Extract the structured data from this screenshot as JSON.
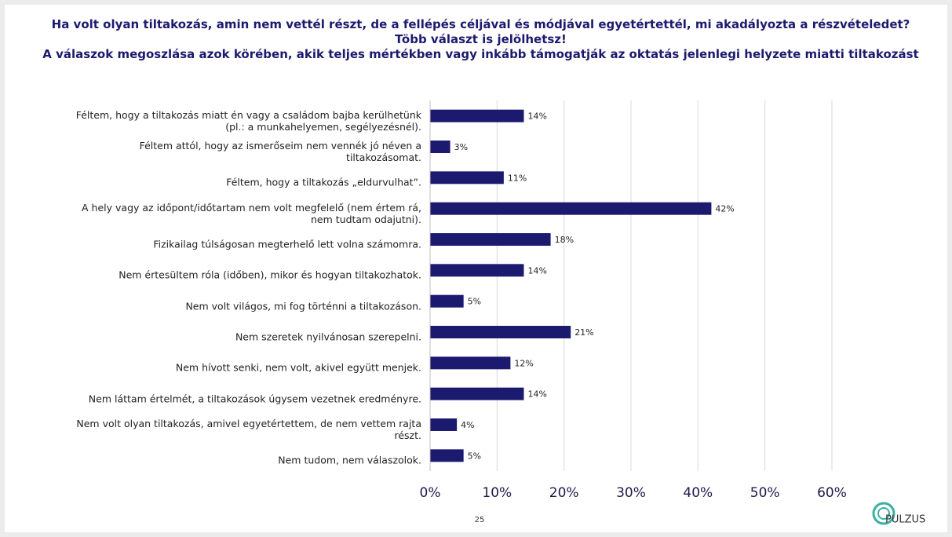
{
  "chart_data": {
    "type": "barh",
    "title": "Ha volt olyan tiltakozás, amin nem vettél részt, de a fellépés céljával és módjával egyetértettél, mi akadályozta a részvételedet? Több választ is jelölhetsz!",
    "subtitle": "A válaszok megoszlása azok körében, akik teljes mértékben vagy inkább támogatják az oktatás jelenlegi helyzete miatti tiltakozást",
    "categories": [
      "Féltem, hogy a tiltakozás miatt én vagy a családom bajba kerülhetünk\n(pl.: a munkahelyemen, segélyezésnél).",
      "Féltem attól, hogy az ismerőseim nem vennék jó néven a\ntiltakozásomat.",
      "Féltem, hogy a tiltakozás „eldurvulhat”.",
      "A hely vagy az időpont/időtartam nem volt megfelelő (nem értem rá,\nnem tudtam odajutni).",
      "Fizikailag túlságosan megterhelő lett volna számomra.",
      "Nem értesültem róla (időben), mikor és hogyan tiltakozhatok.",
      "Nem volt világos, mi fog történni a tiltakozáson.",
      "Nem szeretek nyilvánosan szerepelni.",
      "Nem hívott senki, nem volt, akivel együtt menjek.",
      "Nem láttam értelmét, a tiltakozások úgysem vezetnek eredményre.",
      "Nem volt olyan tiltakozás, amivel egyetértettem, de nem vettem rajta\nrészt.",
      "Nem tudom, nem válaszolok."
    ],
    "values": [
      14,
      3,
      11,
      42,
      18,
      14,
      5,
      21,
      12,
      14,
      4,
      5
    ],
    "value_labels": [
      "14%",
      "3%",
      "11%",
      "42%",
      "18%",
      "14%",
      "5%",
      "21%",
      "12%",
      "14%",
      "4%",
      "5%"
    ],
    "color": "#1c1a6e",
    "xlim": [
      0,
      60
    ],
    "xticks": [
      {
        "value": 0,
        "label": "0%"
      },
      {
        "value": 10,
        "label": "10%"
      },
      {
        "value": 20,
        "label": "20%"
      },
      {
        "value": 30,
        "label": "30%"
      },
      {
        "value": 40,
        "label": "40%"
      },
      {
        "value": 50,
        "label": "50%"
      },
      {
        "value": 60,
        "label": "60%"
      }
    ],
    "grid": true
  },
  "page_number": "25",
  "logo": "PULZUS"
}
